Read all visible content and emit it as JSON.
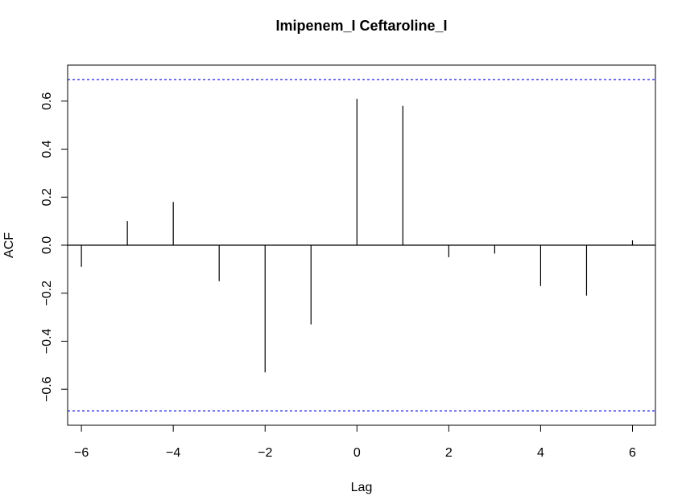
{
  "chart_data": {
    "type": "bar",
    "title": "Imipenem_I Ceftaroline_I",
    "xlabel": "Lag",
    "ylabel": "ACF",
    "x": [
      -6,
      -5,
      -4,
      -3,
      -2,
      -1,
      0,
      1,
      2,
      3,
      4,
      5,
      6
    ],
    "values": [
      -0.09,
      0.1,
      0.18,
      -0.15,
      -0.53,
      -0.33,
      0.61,
      0.58,
      -0.05,
      -0.035,
      -0.17,
      -0.21,
      0.02
    ],
    "xlim": [
      -6.3,
      6.5
    ],
    "ylim": [
      -0.75,
      0.75
    ],
    "x_ticks": [
      -6,
      -4,
      -2,
      0,
      2,
      4,
      6
    ],
    "x_tick_labels": [
      "−6",
      "−4",
      "−2",
      "0",
      "2",
      "4",
      "6"
    ],
    "y_ticks": [
      -0.6,
      -0.4,
      -0.2,
      0.0,
      0.2,
      0.4,
      0.6
    ],
    "y_tick_labels": [
      "−0.6",
      "−0.4",
      "−0.2",
      "0.0",
      "0.2",
      "0.4",
      "0.6"
    ],
    "confidence_bounds": [
      0.69,
      -0.69
    ],
    "confidence_color": "#0000ff",
    "bar_color": "#000000",
    "grid": false
  }
}
